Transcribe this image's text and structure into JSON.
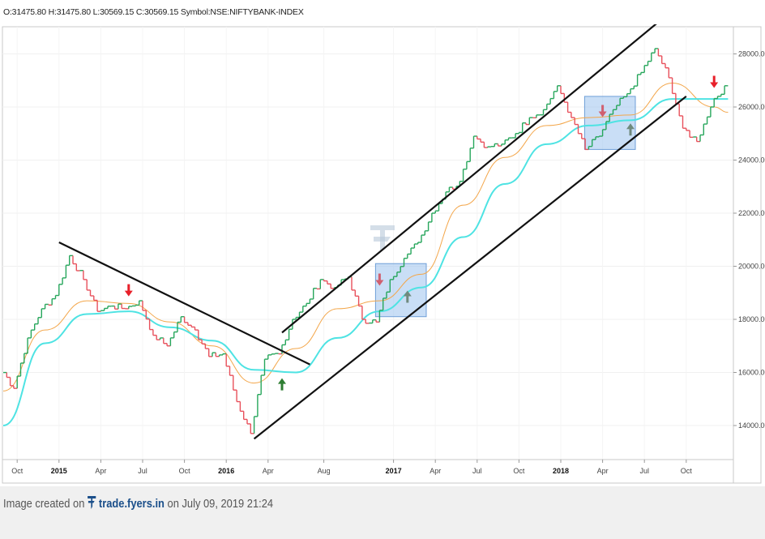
{
  "header": {
    "ohlc_text": "O:31475.80 H:31475.80 L:30569.15 C:30569.15 Symbol:NSE:NIFTYBANK-INDEX"
  },
  "footer": {
    "prefix": "Image created on",
    "brand": "trade.fyers.in",
    "suffix": "on July 09, 2019 21:24"
  },
  "colors": {
    "up": "#26a65b",
    "down": "#e8505b",
    "ema_fast": "#f3a64a",
    "ema_slow": "#4ee3e3",
    "box_fill": "#9cc2ef",
    "arrow_red": "#e8202a",
    "arrow_green": "#2e7d32",
    "arrow_pink": "#d06070",
    "arrow_gray": "#708a7e"
  },
  "chart_data": {
    "type": "line",
    "title": "",
    "xlabel": "",
    "ylabel": "",
    "ylim": [
      13000,
      29000
    ],
    "x_ticks": [
      "Oct",
      "2015",
      "Apr",
      "Jul",
      "Oct",
      "2016",
      "Apr",
      "Aug",
      "2017",
      "Apr",
      "Jul",
      "Oct",
      "2018",
      "Apr",
      "Jul",
      "Oct"
    ],
    "y_ticks": [
      "14000.00",
      "16000.00",
      "18000.00",
      "20000.00",
      "22000.00",
      "24000.00",
      "26000.00",
      "28000.00"
    ],
    "date_range": [
      "2014-09",
      "2019-01"
    ],
    "series": [
      {
        "style": "line-break",
        "x": [
          "2014-09",
          "2014-10",
          "2014-11",
          "2014-12",
          "2015-01",
          "2015-02",
          "2015-03",
          "2015-04",
          "2015-05",
          "2015-06",
          "2015-07",
          "2015-08",
          "2015-09",
          "2015-10",
          "2015-11",
          "2015-12",
          "2016-01",
          "2016-02",
          "2016-03",
          "2016-04",
          "2016-05",
          "2016-06",
          "2016-07",
          "2016-08",
          "2016-09",
          "2016-10",
          "2016-11",
          "2016-12",
          "2017-01",
          "2017-02",
          "2017-03",
          "2017-04",
          "2017-05",
          "2017-06",
          "2017-07",
          "2017-08",
          "2017-09",
          "2017-10",
          "2017-11",
          "2017-12",
          "2018-01",
          "2018-02",
          "2018-03",
          "2018-04",
          "2018-05",
          "2018-06",
          "2018-07",
          "2018-08",
          "2018-09",
          "2018-10",
          "2018-11",
          "2018-12",
          "2019-01"
        ],
        "values": [
          16200,
          15400,
          17300,
          18400,
          18900,
          20400,
          19500,
          18300,
          18500,
          18400,
          18700,
          17400,
          17000,
          18100,
          17600,
          16600,
          16700,
          14900,
          13700,
          16500,
          16700,
          18000,
          18600,
          19500,
          19200,
          19600,
          18000,
          17900,
          19500,
          20300,
          20900,
          22000,
          22800,
          23200,
          24900,
          24500,
          24600,
          25000,
          25600,
          25900,
          26800,
          25600,
          24400,
          24900,
          25900,
          26500,
          27300,
          28200,
          27100,
          25200,
          24700,
          26000,
          26800
        ]
      },
      {
        "name": "",
        "style": "ema-fast",
        "x": [
          "2014-09",
          "2014-12",
          "2015-03",
          "2015-06",
          "2015-09",
          "2015-12",
          "2016-03",
          "2016-06",
          "2016-09",
          "2016-12",
          "2017-03",
          "2017-06",
          "2017-09",
          "2017-12",
          "2018-03",
          "2018-06",
          "2018-09",
          "2018-12",
          "2019-01"
        ],
        "values": [
          15300,
          17600,
          18700,
          18600,
          17900,
          17000,
          15600,
          16900,
          18400,
          18700,
          19700,
          22300,
          24100,
          25300,
          25600,
          25700,
          26900,
          26000,
          25800
        ]
      },
      {
        "name": "",
        "style": "ema-slow",
        "x": [
          "2014-09",
          "2014-12",
          "2015-03",
          "2015-06",
          "2015-09",
          "2015-12",
          "2016-03",
          "2016-06",
          "2016-09",
          "2016-12",
          "2017-03",
          "2017-06",
          "2017-09",
          "2017-12",
          "2018-03",
          "2018-06",
          "2018-09",
          "2018-12",
          "2019-01"
        ],
        "values": [
          14000,
          17100,
          18200,
          18300,
          17700,
          17200,
          16100,
          16000,
          17300,
          18300,
          19200,
          21100,
          23100,
          24600,
          25300,
          25500,
          26300,
          26300,
          26300
        ]
      }
    ],
    "trend_lines": [
      {
        "name": "descending-resistance",
        "from": [
          "2015-01",
          20900
        ],
        "to": [
          "2016-07",
          16300
        ]
      },
      {
        "name": "channel-top",
        "from": [
          "2016-05",
          17500
        ],
        "to": [
          "2018-08",
          29200
        ]
      },
      {
        "name": "channel-bottom",
        "from": [
          "2016-03",
          13500
        ],
        "to": [
          "2018-10",
          26400
        ]
      }
    ],
    "boxes": [
      {
        "name": "box-2017",
        "x": [
          "2016-12",
          "2017-03"
        ],
        "y": [
          18100,
          20100
        ]
      },
      {
        "name": "box-2018",
        "x": [
          "2018-03",
          "2018-06"
        ],
        "y": [
          24400,
          26400
        ]
      }
    ],
    "markers": [
      {
        "type": "arrow-down",
        "color": "red",
        "x": "2015-06",
        "y": 19050
      },
      {
        "type": "arrow-up",
        "color": "green",
        "x": "2016-05",
        "y": 15600
      },
      {
        "type": "arrow-down",
        "color": "pink",
        "x": "2016-12",
        "y": 19450
      },
      {
        "type": "arrow-up",
        "color": "gray",
        "x": "2017-02",
        "y": 18900
      },
      {
        "type": "arrow-down",
        "color": "pink",
        "x": "2018-04",
        "y": 25800
      },
      {
        "type": "arrow-up",
        "color": "gray",
        "x": "2018-06",
        "y": 25200
      },
      {
        "type": "arrow-down",
        "color": "red",
        "x": "2018-12",
        "y": 26900
      }
    ]
  }
}
